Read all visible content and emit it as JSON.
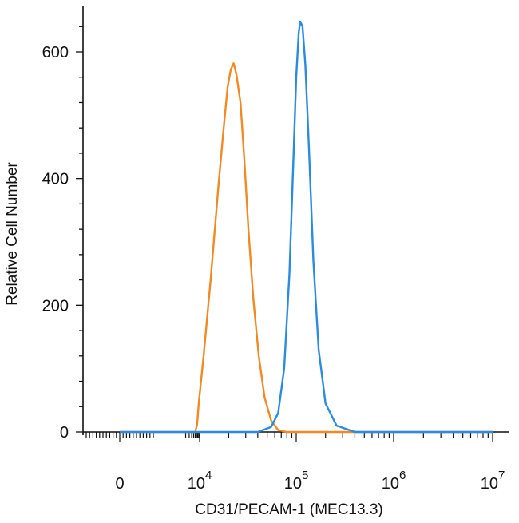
{
  "chart_data": {
    "type": "line",
    "xlabel": "CD31/PECAM-1 (MEC13.3)",
    "ylabel": "Relative Cell Number",
    "x_scale": "biexponential",
    "y_ticks": [
      {
        "value": 0,
        "label": "0"
      },
      {
        "value": 200,
        "label": "200"
      },
      {
        "value": 400,
        "label": "400"
      },
      {
        "value": 600,
        "label": "600"
      }
    ],
    "x_ticks": [
      {
        "value": 0,
        "base": "0",
        "exp": ""
      },
      {
        "value": 10000,
        "base": "10",
        "exp": "4"
      },
      {
        "value": 100000,
        "base": "10",
        "exp": "5"
      },
      {
        "value": 1000000,
        "base": "10",
        "exp": "6"
      },
      {
        "value": 10000000,
        "base": "10",
        "exp": "7"
      }
    ],
    "ylim": [
      0,
      650
    ],
    "grid": false,
    "series": [
      {
        "color": "#f08a24",
        "points": [
          [
            0,
            0
          ],
          [
            3000,
            0
          ],
          [
            6000,
            0
          ],
          [
            7500,
            12
          ],
          [
            9000,
            45
          ],
          [
            11000,
            120
          ],
          [
            13000,
            240
          ],
          [
            15500,
            380
          ],
          [
            17500,
            470
          ],
          [
            19500,
            545
          ],
          [
            21000,
            572
          ],
          [
            22500,
            582
          ],
          [
            24000,
            565
          ],
          [
            26500,
            520
          ],
          [
            29000,
            430
          ],
          [
            32000,
            320
          ],
          [
            36000,
            210
          ],
          [
            41000,
            120
          ],
          [
            47000,
            55
          ],
          [
            55000,
            18
          ],
          [
            65000,
            3
          ],
          [
            80000,
            0
          ],
          [
            10000000,
            0
          ]
        ]
      },
      {
        "color": "#2a8be0",
        "points": [
          [
            0,
            0
          ],
          [
            40000,
            0
          ],
          [
            55000,
            8
          ],
          [
            65000,
            30
          ],
          [
            75000,
            100
          ],
          [
            85000,
            250
          ],
          [
            93000,
            420
          ],
          [
            100000,
            560
          ],
          [
            106000,
            630
          ],
          [
            110000,
            648
          ],
          [
            116000,
            640
          ],
          [
            124000,
            580
          ],
          [
            135000,
            450
          ],
          [
            150000,
            270
          ],
          [
            170000,
            130
          ],
          [
            200000,
            45
          ],
          [
            260000,
            10
          ],
          [
            400000,
            0
          ],
          [
            10000000,
            0
          ]
        ]
      }
    ]
  }
}
